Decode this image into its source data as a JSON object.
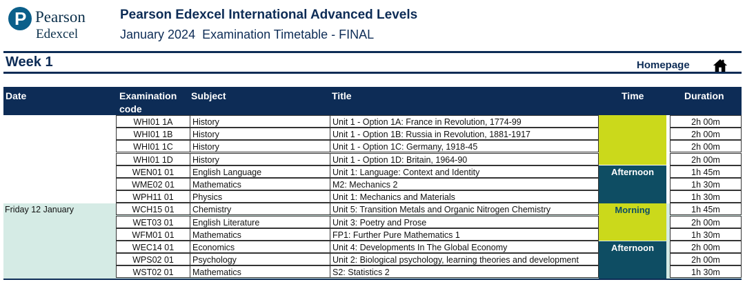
{
  "logo": {
    "letter": "P",
    "line1": "Pearson",
    "line2": "Edexcel"
  },
  "header": {
    "title": "Pearson Edexcel International Advanced Levels",
    "subtitle": "January 2024  Examination Timetable - FINAL"
  },
  "week": {
    "label": "Week 1"
  },
  "nav": {
    "homepage_label": "Homepage",
    "home_icon": "home-icon"
  },
  "table": {
    "headers": {
      "date": "Date",
      "code_line1": "Examination",
      "code_line2": "code",
      "subject": "Subject",
      "title": "Title",
      "time": "Time",
      "duration": "Duration"
    },
    "date_groups": [
      {
        "date": ""
      },
      {
        "date": "Friday 12 January"
      }
    ],
    "time_blocks": [
      {
        "label": "",
        "color": "#cbd91b"
      },
      {
        "label": "Afternoon",
        "color": "#0e4d63"
      },
      {
        "label": "Morning",
        "color": "#cbd91b"
      },
      {
        "label": "Afternoon",
        "color": "#0e4d63"
      }
    ],
    "rows": [
      {
        "code": "WHI01 1A",
        "subject": "History",
        "title": "Unit 1 - Option 1A: France in Revolution, 1774-99",
        "duration": "2h 00m"
      },
      {
        "code": "WHI01 1B",
        "subject": "History",
        "title": "Unit 1 - Option 1B: Russia in Revolution, 1881-1917",
        "duration": "2h 00m"
      },
      {
        "code": "WHI01 1C",
        "subject": "History",
        "title": "Unit 1 - Option 1C: Germany, 1918-45",
        "duration": "2h 00m"
      },
      {
        "code": "WHI01 1D",
        "subject": "History",
        "title": "Unit 1 - Option 1D: Britain, 1964-90",
        "duration": "2h 00m"
      },
      {
        "code": "WEN01 01",
        "subject": "English Language",
        "title": "Unit 1: Language: Context and Identity",
        "duration": "1h 45m"
      },
      {
        "code": "WME02 01",
        "subject": "Mathematics",
        "title": "M2: Mechanics 2",
        "duration": "1h 30m"
      },
      {
        "code": "WPH11 01",
        "subject": "Physics",
        "title": "Unit 1: Mechanics and Materials",
        "duration": "1h 30m"
      },
      {
        "code": "WCH15 01",
        "subject": "Chemistry",
        "title": "Unit 5: Transition Metals and Organic Nitrogen Chemistry",
        "duration": "1h 45m"
      },
      {
        "code": "WET03 01",
        "subject": "English Literature",
        "title": "Unit 3: Poetry and Prose",
        "duration": "2h 00m"
      },
      {
        "code": "WFM01 01",
        "subject": "Mathematics",
        "title": "FP1: Further Pure Mathematics 1",
        "duration": "1h 30m"
      },
      {
        "code": "WEC14 01",
        "subject": "Economics",
        "title": "Unit 4: Developments In The Global Economy",
        "duration": "2h 00m"
      },
      {
        "code": "WPS02 01",
        "subject": "Psychology",
        "title": "Unit 2: Biological psychology, learning theories and development",
        "duration": "2h 00m"
      },
      {
        "code": "WST02 01",
        "subject": "Mathematics",
        "title": "S2: Statistics 2",
        "duration": "1h 30m"
      }
    ]
  },
  "colors": {
    "navy": "#0d2c56",
    "morning": "#cbd91b",
    "afternoon": "#0e4d63",
    "friday_band": "#d5ebe5"
  }
}
